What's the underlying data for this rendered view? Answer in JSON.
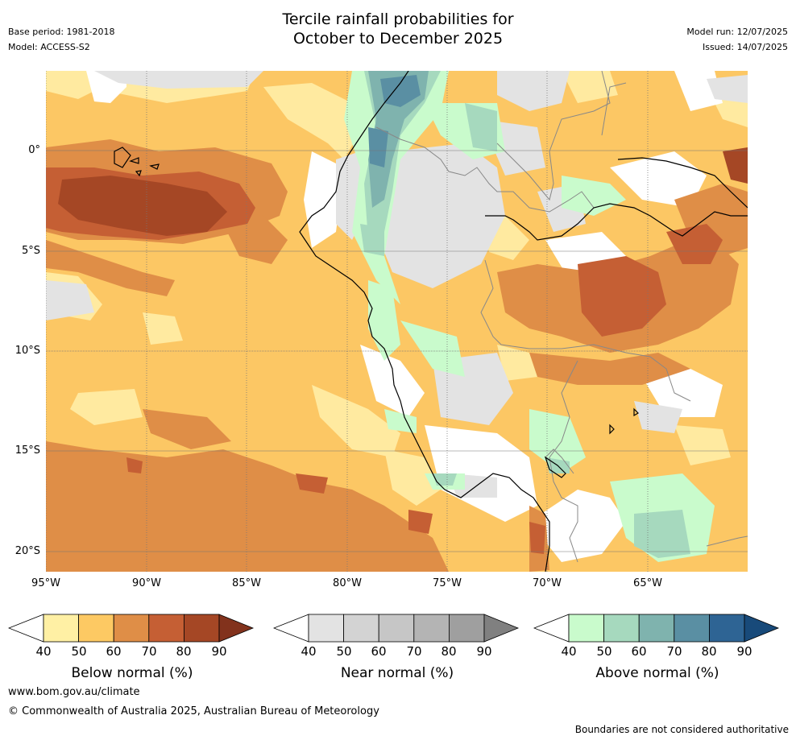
{
  "header": {
    "title_line1": "Tercile rainfall probabilities for",
    "title_line2": "October to December 2025",
    "base_period": "Base period: 1981-2018",
    "model": "Model: ACCESS-S2",
    "model_run": "Model run: 12/07/2025",
    "issued": "Issued: 14/07/2025"
  },
  "map": {
    "lat_labels": [
      "0°",
      "5°S",
      "10°S",
      "15°S",
      "20°S"
    ],
    "lon_labels": [
      "95°W",
      "90°W",
      "85°W",
      "80°W",
      "75°W",
      "70°W",
      "65°W"
    ],
    "colors": {
      "ocean_background": "#fcc764",
      "below_light": "#ffeaa0",
      "below_mid": "#df8e47",
      "below_dark": "#c55f34",
      "below_darkest": "#a54725",
      "near_light": "#e3e3e3",
      "above_light": "#c9fbcc",
      "above_mid": "#a6d9be",
      "above_dark": "#7fb3ae",
      "above_darker": "#5a8fa3",
      "coastline": "#000000",
      "border": "#888888",
      "grid": "#777777"
    }
  },
  "legends": [
    {
      "title": "Below normal (%)",
      "ticks": [
        "40",
        "50",
        "60",
        "70",
        "80",
        "90"
      ],
      "colors": [
        "#ffffff",
        "#fff0a4",
        "#fdc963",
        "#df8e47",
        "#c55f34",
        "#a54725",
        "#82321c"
      ]
    },
    {
      "title": "Near normal (%)",
      "ticks": [
        "40",
        "50",
        "60",
        "70",
        "80",
        "90"
      ],
      "colors": [
        "#ffffff",
        "#e3e3e3",
        "#d3d3d3",
        "#c6c6c6",
        "#b4b4b4",
        "#9f9f9f",
        "#808080"
      ]
    },
    {
      "title": "Above normal (%)",
      "ticks": [
        "40",
        "50",
        "60",
        "70",
        "80",
        "90"
      ],
      "colors": [
        "#ffffff",
        "#c9fbcc",
        "#a6d9be",
        "#7fb3ae",
        "#5a8fa3",
        "#2e6494",
        "#184a7a"
      ]
    }
  ],
  "footer": {
    "website": "www.bom.gov.au/climate",
    "copyright": "© Commonwealth of Australia 2025, Australian Bureau of Meteorology",
    "disclaimer": "Boundaries are not considered authoritative"
  }
}
